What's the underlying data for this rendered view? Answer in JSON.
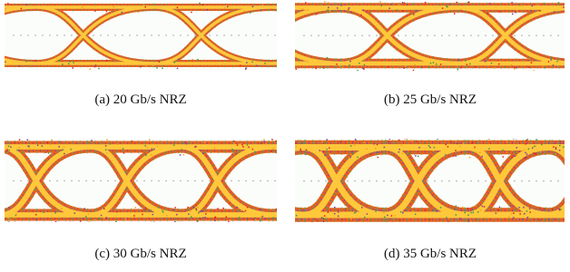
{
  "figure": {
    "panels": [
      {
        "caption": "(a) 20 Gb/s NRZ"
      },
      {
        "caption": "(b) 25 Gb/s NRZ"
      },
      {
        "caption": "(c) 30 Gb/s NRZ"
      },
      {
        "caption": "(d) 35 Gb/s NRZ"
      }
    ]
  }
}
